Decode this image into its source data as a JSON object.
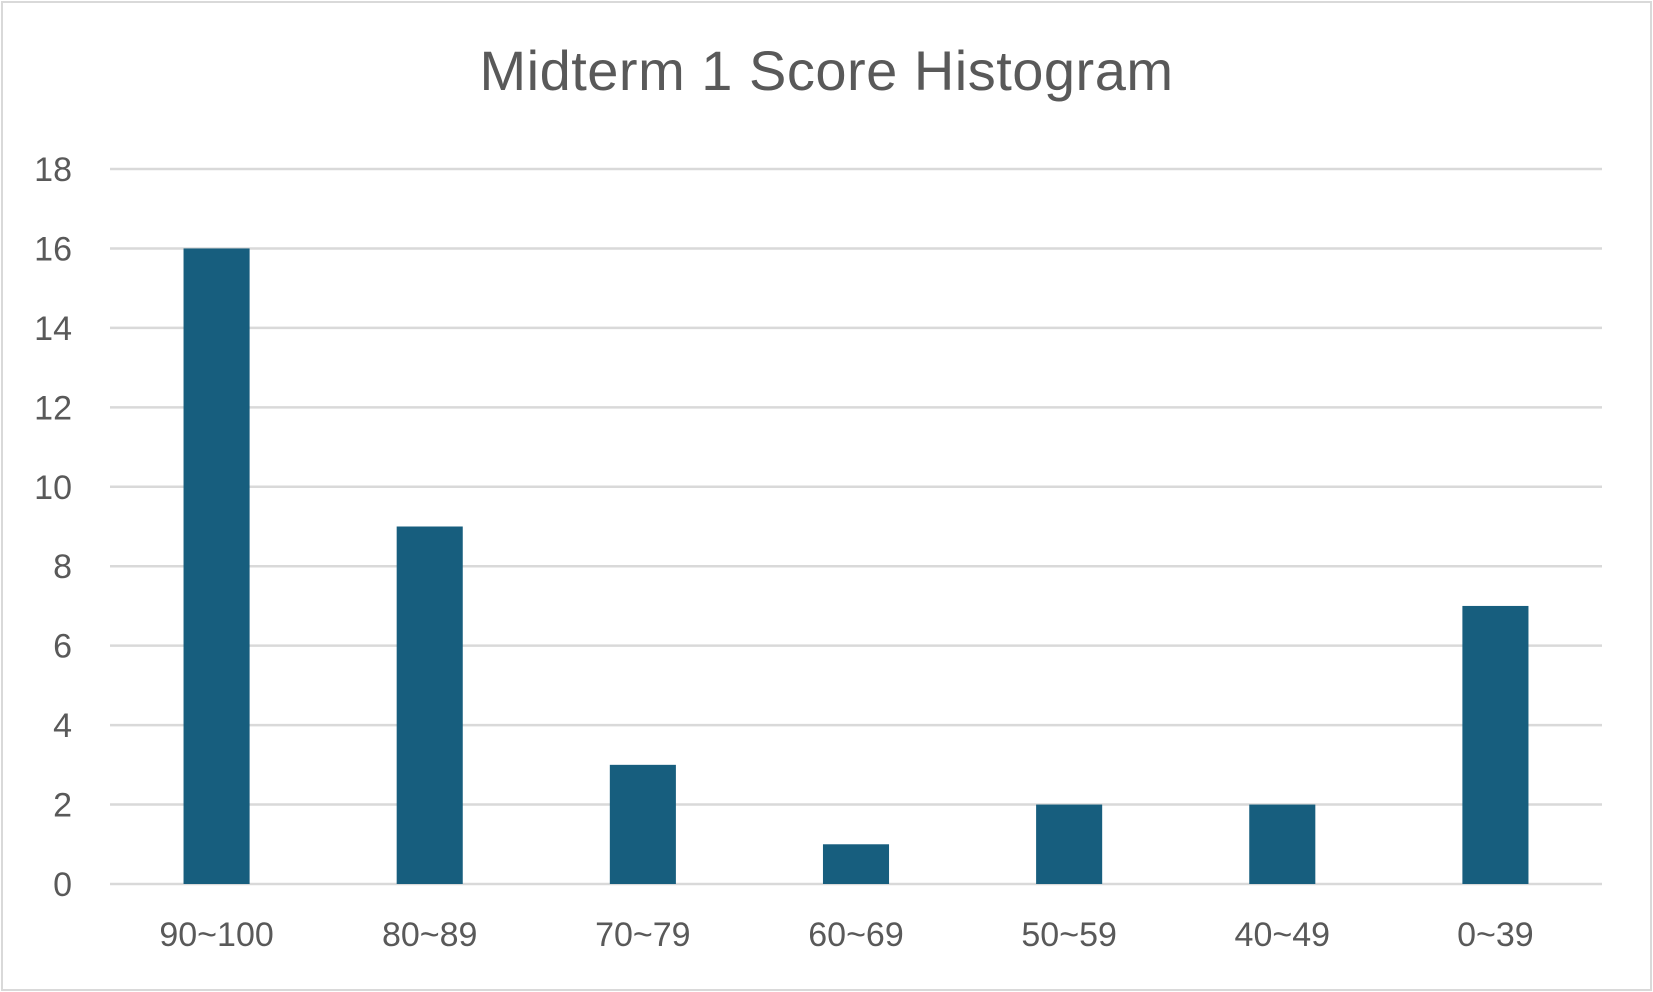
{
  "chart_data": {
    "type": "bar",
    "title": "Midterm 1 Score Histogram",
    "xlabel": "",
    "ylabel": "",
    "categories": [
      "90~100",
      "80~89",
      "70~79",
      "60~69",
      "50~59",
      "40~49",
      "0~39"
    ],
    "values": [
      16,
      9,
      3,
      1,
      2,
      2,
      7
    ],
    "ylim": [
      0,
      18
    ],
    "yticks": [
      0,
      2,
      4,
      6,
      8,
      10,
      12,
      14,
      16,
      18
    ],
    "grid": true,
    "legend": "none",
    "colors": {
      "bar": "#175e7e",
      "grid": "#d9d9d9",
      "text": "#595959",
      "border": "#d9d9d9"
    }
  }
}
